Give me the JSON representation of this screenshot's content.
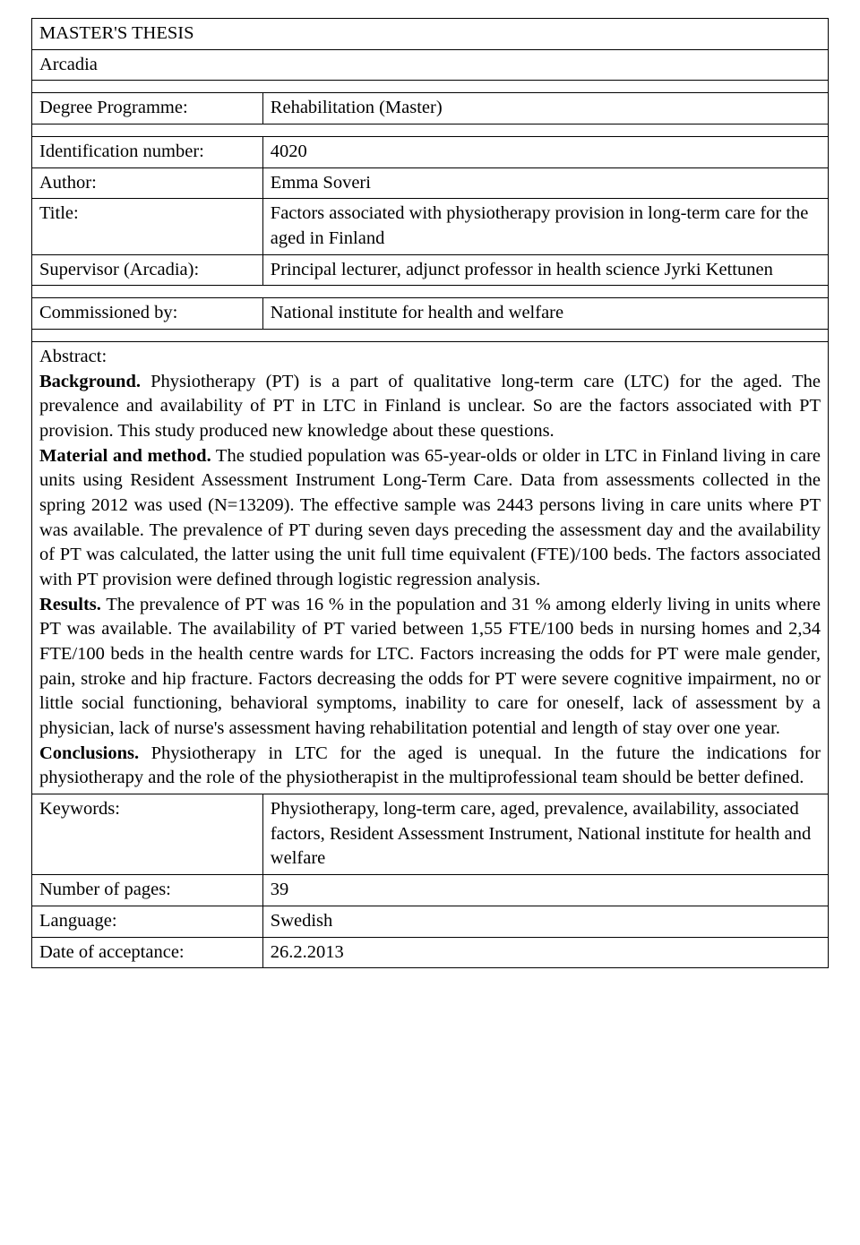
{
  "header": {
    "doc_type": "MASTER'S THESIS",
    "institution": "Arcadia"
  },
  "fields": {
    "degree_programme_label": "Degree Programme:",
    "degree_programme_value": "Rehabilitation (Master)",
    "id_number_label": "Identification number:",
    "id_number_value": "4020",
    "author_label": "Author:",
    "author_value": "Emma Soveri",
    "title_label": "Title:",
    "title_value": "Factors associated with physiotherapy provision  in long-term care for the aged in Finland",
    "supervisor_label": "Supervisor (Arcadia):",
    "supervisor_value": "Principal lecturer, adjunct professor in health science Jyrki Kettunen",
    "commissioned_label": "Commissioned by:",
    "commissioned_value": "National institute for health and welfare",
    "keywords_label": "Keywords:",
    "keywords_value": "Physiotherapy, long-term care, aged, prevalence, availability, associated factors, Resident Assessment Instrument, National institute for health and welfare",
    "pages_label": "Number of pages:",
    "pages_value": "39",
    "language_label": "Language:",
    "language_value": "Swedish",
    "date_label": "Date of acceptance:",
    "date_value": "26.2.2013"
  },
  "abstract": {
    "title": "Abstract:",
    "background_label": "Background.",
    "background_text": " Physiotherapy (PT) is a part of qualitative long-term care (LTC) for the aged. The prevalence and availability of PT in LTC in Finland is unclear. So are the factors associated with PT provision. This study produced new knowledge about these questions.",
    "material_label": "Material and method.",
    "material_text": " The studied population was 65-year-olds or older in LTC in Finland living in care units using Resident Assessment Instrument Long-Term Care. Data from assessments collected in the spring 2012 was used (N=13209). The effective sample was 2443 persons living in care units where PT was available. The prevalence of PT during seven days preceding the assessment day and the availability of PT was calculated, the latter using the unit full time equivalent (FTE)/100 beds. The factors associated with PT provision were defined through logistic regression analysis.",
    "results_label": "Results.",
    "results_text": " The prevalence of PT was 16 % in the population and 31 % among elderly living in units where PT was available. The availability of PT varied between 1,55 FTE/100 beds in nursing homes and 2,34 FTE/100 beds in the health centre wards for LTC. Factors increasing the odds for PT were male gender, pain, stroke and hip fracture. Factors decreasing the odds for PT were severe cognitive impairment, no or little social functioning, behavioral symptoms, inability to care for oneself, lack of assessment by a physician, lack of nurse's assessment having rehabilitation potential and length of stay over one year.",
    "conclusions_label": "Conclusions.",
    "conclusions_text": " Physiotherapy in LTC for the aged is unequal. In the future the indications for physiotherapy and the role of the physiotherapist in the multiprofessional team should be better defined."
  }
}
